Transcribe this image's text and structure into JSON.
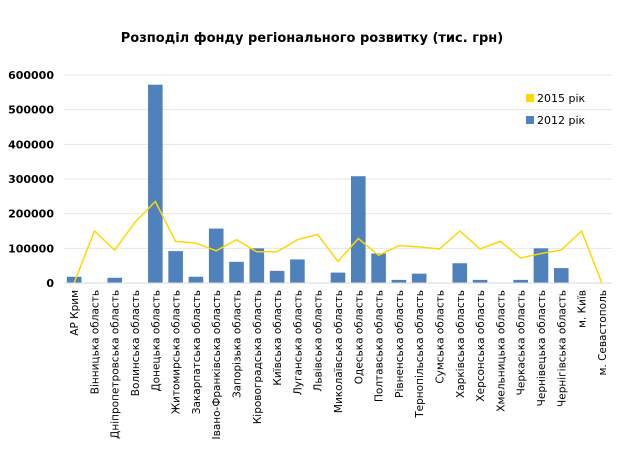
{
  "chart_data": {
    "type": "bar",
    "title": "Розподіл фонду регіонального розвитку (тис. грн)",
    "ylim": [
      0,
      600000
    ],
    "yticks": [
      0,
      100000,
      200000,
      300000,
      400000,
      500000,
      600000
    ],
    "grid": true,
    "legend_position": "top-right",
    "categories": [
      "АР Крим",
      "Вінницька область",
      "Дніпропетровська область",
      "Волинська область",
      "Донецька область",
      "Житомирська область",
      "Закарпатська область",
      "Івано-Франківська область",
      "Запорізька область",
      "Кіровоградська область",
      "Київська область",
      "Луганська область",
      "Львівська область",
      "Миколаївська область",
      "Одеська область",
      "Полтавська область",
      "Рівненська область",
      "Тернопільська область",
      "Сумська область",
      "Харківська область",
      "Херсонська область",
      "Хмельницька область",
      "Черкаська область",
      "Чернівецька область",
      "Чернігівська область",
      "м. Київ",
      "м. Севастополь"
    ],
    "series": [
      {
        "name": "2012 рік",
        "type": "bar",
        "color": "#4f81bd",
        "values": [
          18000,
          0,
          15000,
          0,
          572000,
          92000,
          18000,
          157000,
          61000,
          100000,
          35000,
          68000,
          0,
          30000,
          308000,
          85000,
          9000,
          27000,
          0,
          57000,
          9000,
          0,
          9000,
          100000,
          43000,
          0,
          0
        ]
      },
      {
        "name": "2015 рік",
        "type": "line",
        "color": "#ffd700",
        "values": [
          0,
          150000,
          95000,
          175000,
          235000,
          120000,
          115000,
          93000,
          125000,
          90000,
          90000,
          125000,
          140000,
          62000,
          128000,
          80000,
          108000,
          104000,
          98000,
          150000,
          98000,
          120000,
          72000,
          85000,
          95000,
          150000,
          0
        ]
      }
    ]
  }
}
